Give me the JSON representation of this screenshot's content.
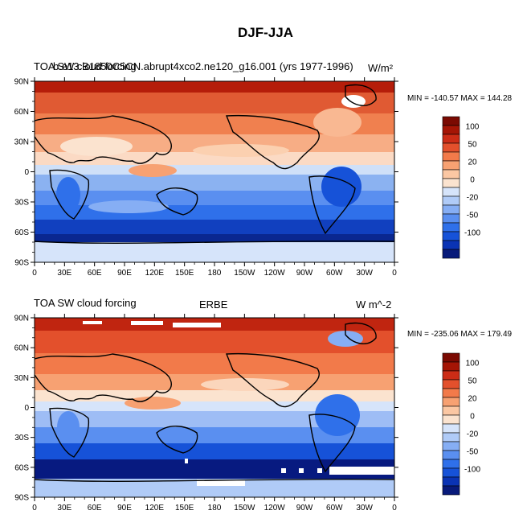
{
  "figure": {
    "title": "DJF-JJA"
  },
  "colorbar": {
    "colors": [
      "#081a7a",
      "#0a33b4",
      "#1652d8",
      "#2f70ea",
      "#5a8ff0",
      "#86aef4",
      "#b0cbf7",
      "#d6e4fa",
      "#fbe3cf",
      "#fbc7a3",
      "#f7a172",
      "#f27a4a",
      "#e3502c",
      "#cc2c16",
      "#a51505",
      "#7b0a02"
    ],
    "labels": [
      "100",
      "50",
      "20",
      "0",
      "-20",
      "-50",
      "-100"
    ]
  },
  "lon_ticks": [
    "0",
    "30E",
    "60E",
    "90E",
    "120E",
    "150E",
    "180",
    "150W",
    "120W",
    "90W",
    "60W",
    "30W",
    "0"
  ],
  "lat_ticks": [
    "90N",
    "60N",
    "30N",
    "0",
    "30S",
    "60S",
    "90S"
  ],
  "panels": [
    {
      "left_title_a": "TOA SW cloud forcing",
      "left_title_b": "b.e13.B1850C5CN.abrupt4xco2.ne120_g16.001 (yrs 1977-1996)",
      "center_title": "",
      "units": "W/m²",
      "min_max": "MIN = -140.57 MAX = 144.28"
    },
    {
      "left_title_a": "TOA SW cloud forcing",
      "left_title_b": "",
      "center_title": "ERBE",
      "units": "W m^-2",
      "min_max": "MIN = -235.06 MAX = 179.49"
    }
  ]
}
